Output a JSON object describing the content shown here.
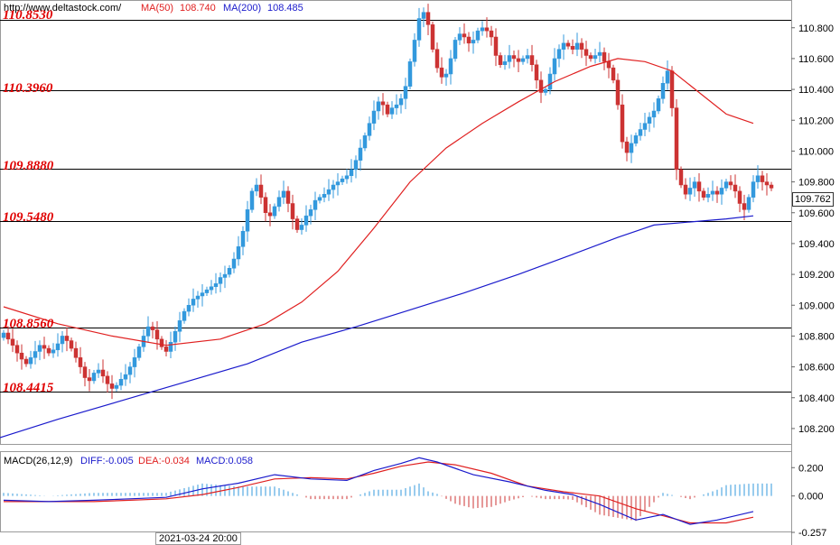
{
  "header": {
    "site": "http://www.deltastock.com/",
    "ma50_label": "MA(50)",
    "ma50_value": "108.740",
    "ma200_label": "MA(200)",
    "ma200_value": "108.485"
  },
  "macd_header": {
    "title": "MACD(26,12,9)",
    "diff": "DIFF:-0.005",
    "dea": "DEA:-0.034",
    "macd": "MACD:0.058"
  },
  "levels": [
    {
      "label": "110.8530",
      "value": 110.853
    },
    {
      "label": "110.3960",
      "value": 110.396
    },
    {
      "label": "109.8880",
      "value": 109.888
    },
    {
      "label": "109.5480",
      "value": 109.548
    },
    {
      "label": "108.8560",
      "value": 108.856
    },
    {
      "label": "108.4415",
      "value": 108.4415
    }
  ],
  "current_price": "109.762",
  "date_label": "2021-03-24 20:00",
  "colors": {
    "up": "#3399dd",
    "down": "#cc3333",
    "ma50": "#e02020",
    "ma200": "#1a1acc",
    "level_text": "#e00000",
    "diff": "#1a1acc",
    "dea": "#e02020"
  },
  "chart_data": {
    "type": "candlestick",
    "price_axis": {
      "ticks": [
        "110.800",
        "110.600",
        "110.400",
        "110.200",
        "110.000",
        "109.800",
        "109.600",
        "109.400",
        "109.200",
        "109.000",
        "108.800",
        "108.600",
        "108.400",
        "108.200"
      ],
      "range": [
        108.1,
        110.98
      ]
    },
    "macd_axis": {
      "ticks": [
        "0.200",
        "0.000",
        "-0.257"
      ],
      "range": [
        -0.257,
        0.31
      ]
    },
    "close_path": [
      108.82,
      108.78,
      108.74,
      108.69,
      108.65,
      108.62,
      108.66,
      108.7,
      108.74,
      108.72,
      108.69,
      108.71,
      108.75,
      108.8,
      108.77,
      108.72,
      108.66,
      108.6,
      108.53,
      108.51,
      108.56,
      108.58,
      108.54,
      108.49,
      108.46,
      108.48,
      108.52,
      108.55,
      108.6,
      108.66,
      108.73,
      108.8,
      108.86,
      108.84,
      108.78,
      108.73,
      108.7,
      108.76,
      108.83,
      108.9,
      108.96,
      109.0,
      109.04,
      109.06,
      109.08,
      109.1,
      109.12,
      109.14,
      109.18,
      109.2,
      109.24,
      109.3,
      109.38,
      109.48,
      109.62,
      109.74,
      109.78,
      109.7,
      109.6,
      109.58,
      109.64,
      109.7,
      109.74,
      109.66,
      109.56,
      109.49,
      109.52,
      109.58,
      109.62,
      109.68,
      109.7,
      109.72,
      109.75,
      109.78,
      109.8,
      109.82,
      109.84,
      109.88,
      109.94,
      110.02,
      110.1,
      110.18,
      110.26,
      110.32,
      110.3,
      110.24,
      110.28,
      110.3,
      110.34,
      110.42,
      110.58,
      110.72,
      110.86,
      110.9,
      110.82,
      110.66,
      110.54,
      110.48,
      110.5,
      110.6,
      110.72,
      110.76,
      110.74,
      110.7,
      110.72,
      110.78,
      110.8,
      110.78,
      110.74,
      110.62,
      110.56,
      110.58,
      110.62,
      110.6,
      110.58,
      110.6,
      110.62,
      110.56,
      110.46,
      110.38,
      110.4,
      110.5,
      110.6,
      110.66,
      110.7,
      110.68,
      110.66,
      110.7,
      110.66,
      110.62,
      110.6,
      110.62,
      110.64,
      110.58,
      110.54,
      110.46,
      110.3,
      110.06,
      109.99,
      110.05,
      110.1,
      110.14,
      110.18,
      110.22,
      110.26,
      110.34,
      110.44,
      110.52,
      110.28,
      109.88,
      109.78,
      109.72,
      109.76,
      109.8,
      109.74,
      109.7,
      109.72,
      109.74,
      109.72,
      109.76,
      109.8,
      109.78,
      109.74,
      109.66,
      109.62,
      109.7,
      109.8,
      109.84,
      109.8,
      109.78,
      109.76
    ],
    "ma50": [
      [
        0,
        108.99
      ],
      [
        12,
        108.88
      ],
      [
        24,
        108.8
      ],
      [
        36,
        108.74
      ],
      [
        48,
        108.78
      ],
      [
        58,
        108.88
      ],
      [
        66,
        109.02
      ],
      [
        74,
        109.22
      ],
      [
        82,
        109.5
      ],
      [
        90,
        109.8
      ],
      [
        98,
        110.02
      ],
      [
        106,
        110.18
      ],
      [
        114,
        110.32
      ],
      [
        122,
        110.45
      ],
      [
        130,
        110.55
      ],
      [
        136,
        110.6
      ],
      [
        142,
        110.58
      ],
      [
        148,
        110.52
      ],
      [
        154,
        110.38
      ],
      [
        160,
        110.24
      ],
      [
        166,
        110.18
      ]
    ],
    "ma200": [
      [
        -2,
        108.13
      ],
      [
        12,
        108.26
      ],
      [
        26,
        108.38
      ],
      [
        40,
        108.5
      ],
      [
        54,
        108.62
      ],
      [
        66,
        108.76
      ],
      [
        78,
        108.86
      ],
      [
        90,
        108.97
      ],
      [
        102,
        109.08
      ],
      [
        114,
        109.2
      ],
      [
        126,
        109.33
      ],
      [
        136,
        109.44
      ],
      [
        144,
        109.52
      ],
      [
        152,
        109.54
      ],
      [
        160,
        109.56
      ],
      [
        166,
        109.58
      ]
    ],
    "macd_diff": [
      [
        0,
        -0.03
      ],
      [
        10,
        -0.04
      ],
      [
        20,
        -0.03
      ],
      [
        28,
        -0.02
      ],
      [
        36,
        -0.01
      ],
      [
        44,
        0.05
      ],
      [
        52,
        0.09
      ],
      [
        60,
        0.15
      ],
      [
        68,
        0.12
      ],
      [
        76,
        0.11
      ],
      [
        82,
        0.18
      ],
      [
        88,
        0.23
      ],
      [
        92,
        0.27
      ],
      [
        96,
        0.24
      ],
      [
        104,
        0.15
      ],
      [
        112,
        0.1
      ],
      [
        120,
        0.04
      ],
      [
        126,
        0.01
      ],
      [
        132,
        -0.06
      ],
      [
        140,
        -0.17
      ],
      [
        146,
        -0.13
      ],
      [
        152,
        -0.2
      ],
      [
        158,
        -0.17
      ],
      [
        166,
        -0.11
      ]
    ],
    "macd_dea": [
      [
        0,
        -0.04
      ],
      [
        10,
        -0.04
      ],
      [
        20,
        -0.04
      ],
      [
        28,
        -0.03
      ],
      [
        36,
        -0.02
      ],
      [
        44,
        0.01
      ],
      [
        52,
        0.06
      ],
      [
        60,
        0.12
      ],
      [
        68,
        0.13
      ],
      [
        76,
        0.12
      ],
      [
        82,
        0.16
      ],
      [
        88,
        0.21
      ],
      [
        94,
        0.24
      ],
      [
        100,
        0.22
      ],
      [
        108,
        0.16
      ],
      [
        116,
        0.07
      ],
      [
        124,
        0.03
      ],
      [
        132,
        0.0
      ],
      [
        140,
        -0.09
      ],
      [
        146,
        -0.14
      ],
      [
        152,
        -0.19
      ],
      [
        160,
        -0.19
      ],
      [
        166,
        -0.15
      ]
    ]
  }
}
